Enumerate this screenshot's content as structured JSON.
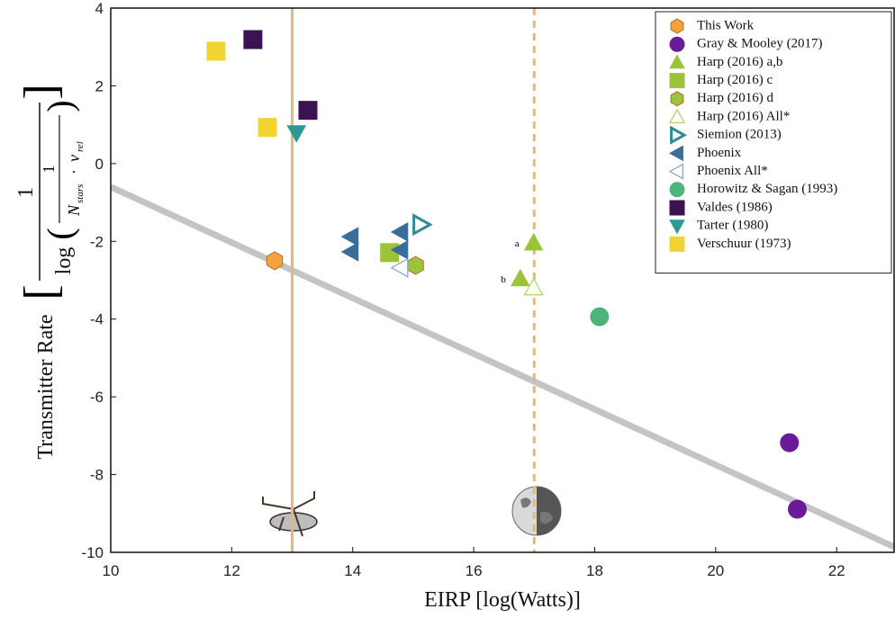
{
  "chart_data": {
    "type": "scatter",
    "xlabel": "EIRP [log(Watts)]",
    "ylabel": "Transmitter Rate",
    "ylabel_formula": {
      "numerator": "1",
      "log": "log",
      "inner_numerator": "1",
      "n": "N",
      "n_sub": "stars",
      "dot": "·",
      "nu": "ν",
      "nu_sub": "rel"
    },
    "xlim": [
      10,
      22.95
    ],
    "ylim": [
      -10,
      4
    ],
    "xticks": [
      10,
      12,
      14,
      16,
      18,
      20,
      22
    ],
    "yticks": [
      -10,
      -8,
      -6,
      -4,
      -2,
      0,
      2,
      4
    ],
    "grid": false,
    "legend": "upper right",
    "fit_line": {
      "x": [
        10,
        22.95
      ],
      "y": [
        -0.6,
        -9.86
      ],
      "color": "#c4c4c4"
    },
    "vlines": [
      {
        "x": 13,
        "style": "solid",
        "color": "#e2b97c"
      },
      {
        "x": 17,
        "style": "dashed",
        "color": "#e2b97c"
      }
    ],
    "series": [
      {
        "name": "This Work",
        "marker": "hexagon",
        "color": "#f5a23e",
        "x": [
          12.71
        ],
        "y": [
          -2.5
        ]
      },
      {
        "name": "Gray & Mooley (2017)",
        "marker": "circle",
        "color": "#6a1b9a",
        "x": [
          21.22,
          21.35
        ],
        "y": [
          -7.18,
          -8.89
        ]
      },
      {
        "name": "Harp (2016) a,b",
        "marker": "triangle-up",
        "color": "#9cc43a",
        "x": [
          16.99,
          16.77
        ],
        "y": [
          -2.04,
          -2.96
        ],
        "point_labels": [
          "a",
          "b"
        ]
      },
      {
        "name": "Harp (2016) c",
        "marker": "square",
        "color": "#9cc43a",
        "x": [
          14.61
        ],
        "y": [
          -2.29
        ]
      },
      {
        "name": "Harp (2016) d",
        "marker": "hexagon",
        "color": "#9cc43a",
        "x": [
          15.04
        ],
        "y": [
          -2.62
        ]
      },
      {
        "name": "Harp (2016) All*",
        "marker": "triangle-up-open",
        "color": "#b5d46a",
        "x": [
          16.99
        ],
        "y": [
          -3.19
        ]
      },
      {
        "name": "Siemion (2013)",
        "marker": "triangle-right-open",
        "color": "#2f8a96",
        "x": [
          15.13
        ],
        "y": [
          -1.57
        ]
      },
      {
        "name": "Phoenix",
        "marker": "triangle-left",
        "color": "#3a6e9a",
        "x": [
          13.97,
          13.97,
          14.79,
          14.79
        ],
        "y": [
          -1.88,
          -2.27,
          -1.76,
          -2.22
        ]
      },
      {
        "name": "Phoenix All*",
        "marker": "triangle-left-open",
        "color": "#8aa8cc",
        "x": [
          14.79
        ],
        "y": [
          -2.68
        ]
      },
      {
        "name": "Horowitz & Sagan (1993)",
        "marker": "circle",
        "color": "#4fb37c",
        "x": [
          18.08
        ],
        "y": [
          -3.94
        ]
      },
      {
        "name": "Valdes (1986)",
        "marker": "square",
        "color": "#3d1252",
        "x": [
          12.35,
          13.26
        ],
        "y": [
          3.19,
          1.37
        ]
      },
      {
        "name": "Tarter (1980)",
        "marker": "triangle-down",
        "color": "#2a9a93",
        "x": [
          13.07
        ],
        "y": [
          0.79
        ]
      },
      {
        "name": "Verschuur (1973)",
        "marker": "square",
        "color": "#f0d430",
        "x": [
          11.74,
          12.59
        ],
        "y": [
          2.89,
          0.93
        ]
      }
    ]
  }
}
